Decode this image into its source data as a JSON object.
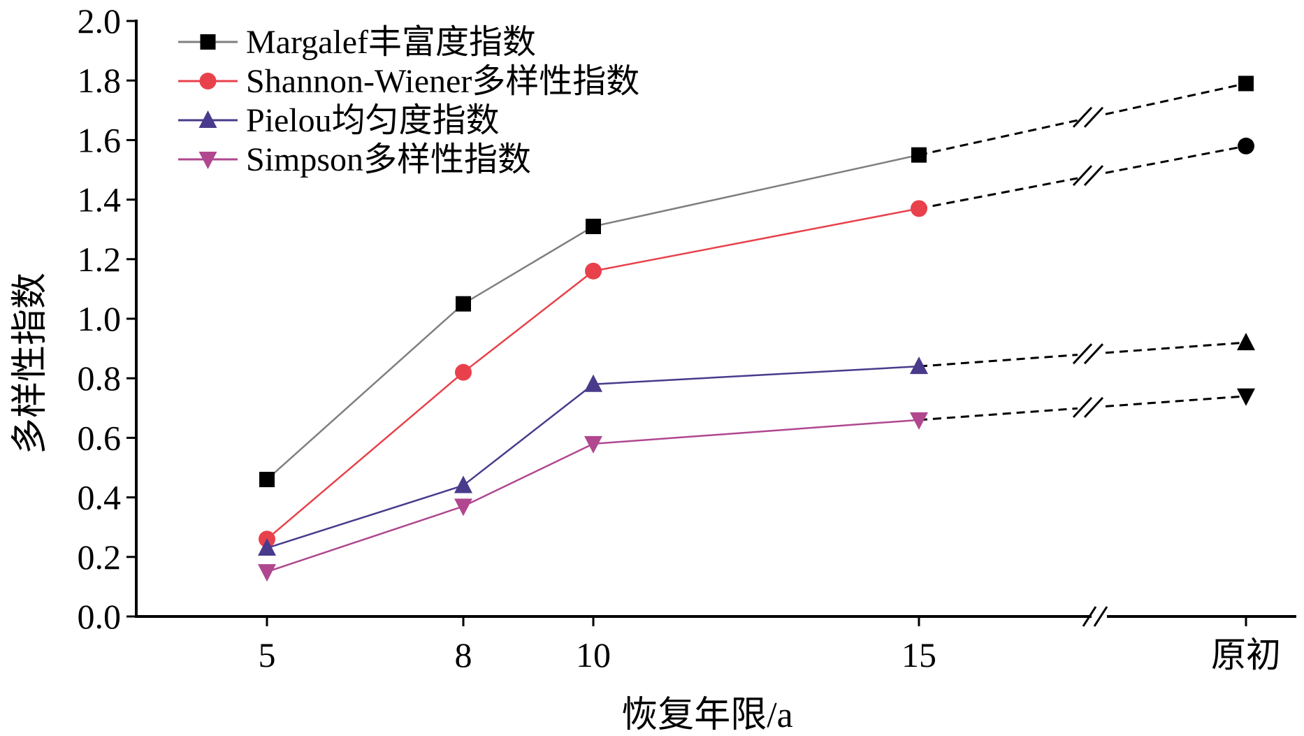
{
  "chart_data": {
    "type": "line",
    "title": "",
    "xlabel": "恢复年限/a",
    "ylabel": "多样性指数",
    "categories": [
      "5",
      "8",
      "10",
      "15",
      "原初"
    ],
    "x": [
      5,
      8,
      10,
      15,
      "原初"
    ],
    "ylim": [
      0,
      2.0
    ],
    "yticks": [
      "0.0",
      "0.2",
      "0.4",
      "0.6",
      "0.8",
      "1.0",
      "1.2",
      "1.4",
      "1.6",
      "1.8",
      "2.0"
    ],
    "axis_break": "between 15 and 原初",
    "legend_position": "top-left",
    "grid": false,
    "series": [
      {
        "name": "Margalef丰富度指数",
        "marker": "square",
        "color": "#7f7f7f",
        "values": [
          0.46,
          1.05,
          1.31,
          1.55,
          1.79
        ]
      },
      {
        "name": "Shannon-Wiener多样性指数",
        "marker": "circle",
        "color": "#e8414b",
        "values": [
          0.26,
          0.82,
          1.16,
          1.37,
          1.58
        ]
      },
      {
        "name": "Pielou均匀度指数",
        "marker": "triangle-up",
        "color": "#4a3a8c",
        "values": [
          0.23,
          0.44,
          0.78,
          0.84,
          0.92
        ]
      },
      {
        "name": "Simpson多样性指数",
        "marker": "triangle-down",
        "color": "#b0478f",
        "values": [
          0.15,
          0.37,
          0.58,
          0.66,
          0.74
        ]
      }
    ]
  }
}
